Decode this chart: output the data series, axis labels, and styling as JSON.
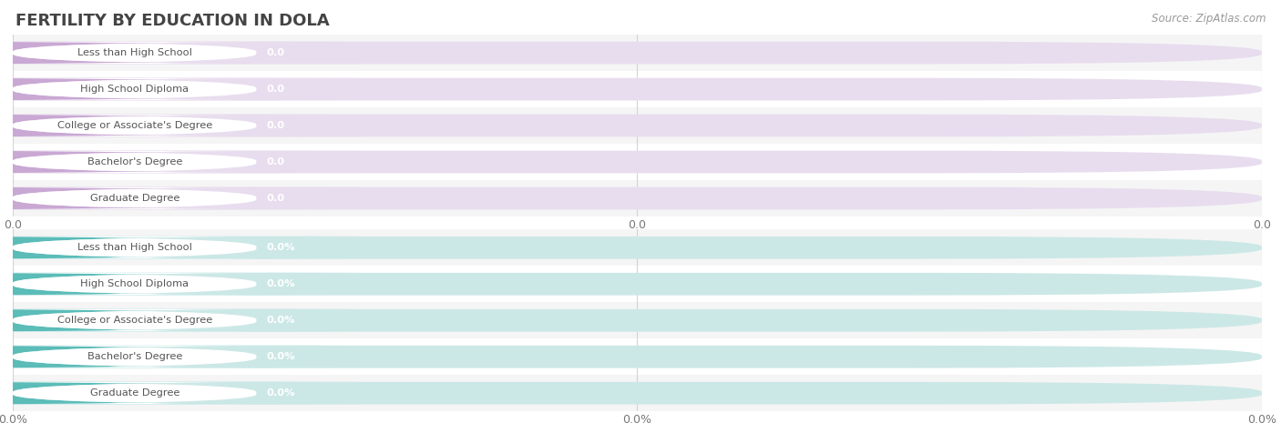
{
  "title": "FERTILITY BY EDUCATION IN DOLA",
  "source": "Source: ZipAtlas.com",
  "categories": [
    "Less than High School",
    "High School Diploma",
    "College or Associate's Degree",
    "Bachelor's Degree",
    "Graduate Degree"
  ],
  "top_values": [
    0.0,
    0.0,
    0.0,
    0.0,
    0.0
  ],
  "bottom_values": [
    0.0,
    0.0,
    0.0,
    0.0,
    0.0
  ],
  "top_bar_color": "#c9a8d4",
  "top_bar_bg": "#e8ddef",
  "top_accent_color": "#b085c0",
  "bottom_bar_color": "#5bbcb8",
  "bottom_bar_bg": "#cce8e6",
  "bottom_accent_color": "#3a9e9a",
  "row_bg_even": "#f5f5f5",
  "row_bg_odd": "#ffffff",
  "label_bg": "#ffffff",
  "grid_color": "#d0d0d0",
  "text_color": "#777777",
  "value_text_color": "#ffffff",
  "label_text_color": "#555555",
  "title_color": "#444444",
  "xtick_labels_top": [
    "0.0",
    "0.0",
    "0.0"
  ],
  "xtick_labels_bottom": [
    "0.0%",
    "0.0%",
    "0.0%"
  ],
  "fig_bg": "#ffffff"
}
